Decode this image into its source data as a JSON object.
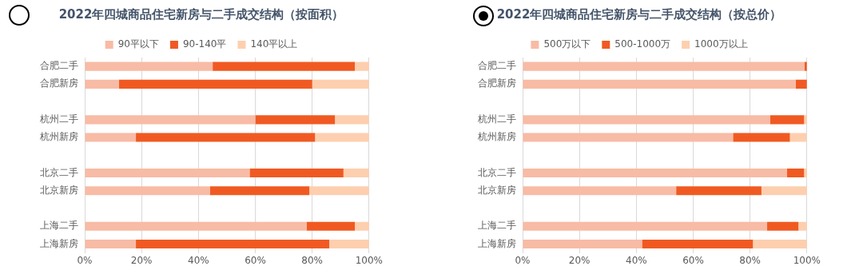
{
  "chart_data": [
    {
      "type": "bar",
      "title": "2022年四城商品住宅新房与二手成交结构（按面积）",
      "orientation": "horizontal",
      "stacked": true,
      "legend": "top",
      "grid": "x",
      "categories": [
        "合肥二手",
        "合肥新房",
        null,
        "杭州二手",
        "杭州新房",
        null,
        "北京二手",
        "北京新房",
        null,
        "上海二手",
        "上海新房"
      ],
      "series": [
        {
          "name": "90平以下",
          "color": "#f8bba5",
          "values": [
            45,
            12,
            null,
            60,
            18,
            null,
            58,
            44,
            null,
            78,
            18
          ]
        },
        {
          "name": "90-140平",
          "color": "#f05a22",
          "values": [
            50,
            68,
            null,
            28,
            63,
            null,
            33,
            35,
            null,
            17,
            68
          ]
        },
        {
          "name": "140平以上",
          "color": "#fdcfaf",
          "values": [
            5,
            20,
            null,
            12,
            19,
            null,
            9,
            21,
            null,
            5,
            14
          ]
        }
      ],
      "xlim": [
        0,
        100
      ],
      "xticks": [
        {
          "value": 0,
          "label": "0%"
        },
        {
          "value": 20,
          "label": "20%"
        },
        {
          "value": 40,
          "label": "40%"
        },
        {
          "value": 60,
          "label": "60%"
        },
        {
          "value": 80,
          "label": "80%"
        },
        {
          "value": 100,
          "label": "100%"
        }
      ]
    },
    {
      "type": "bar",
      "title": "2022年四城商品住宅新房与二手成交结构（按总价）",
      "orientation": "horizontal",
      "stacked": true,
      "legend": "top",
      "grid": "x",
      "categories": [
        "合肥二手",
        "合肥新房",
        null,
        "杭州二手",
        "杭州新房",
        null,
        "北京二手",
        "北京新房",
        null,
        "上海二手",
        "上海新房"
      ],
      "series": [
        {
          "name": "500万以下",
          "color": "#f8bba5",
          "values": [
            99.2,
            96,
            null,
            87,
            74,
            null,
            93,
            54,
            null,
            86,
            42
          ]
        },
        {
          "name": "500-1000万",
          "color": "#f05a22",
          "values": [
            0.8,
            4,
            null,
            12,
            20,
            null,
            6,
            30,
            null,
            11,
            39
          ]
        },
        {
          "name": "1000万以上",
          "color": "#fdcfaf",
          "values": [
            0,
            0,
            null,
            1,
            6,
            null,
            1,
            16,
            null,
            3,
            19
          ]
        }
      ],
      "xlim": [
        0,
        100
      ],
      "xticks": [
        {
          "value": 0,
          "label": "0%"
        },
        {
          "value": 20,
          "label": "20%"
        },
        {
          "value": 40,
          "label": "40%"
        },
        {
          "value": 60,
          "label": "60%"
        },
        {
          "value": 80,
          "label": "80%"
        },
        {
          "value": 100,
          "label": "100%"
        }
      ]
    }
  ]
}
